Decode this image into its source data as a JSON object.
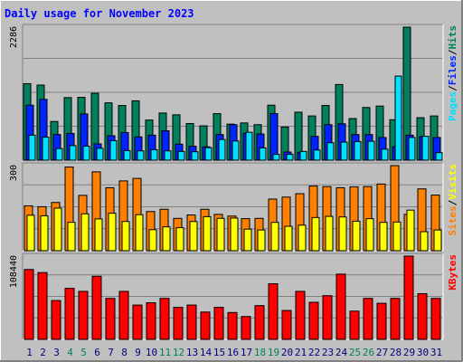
{
  "chart_data": [
    {
      "type": "bar",
      "title": "Daily usage for November 2023",
      "panel": "hits-files-pages",
      "categories": [
        "1",
        "2",
        "3",
        "4",
        "5",
        "6",
        "7",
        "8",
        "9",
        "10",
        "11",
        "12",
        "13",
        "14",
        "15",
        "16",
        "17",
        "18",
        "19",
        "20",
        "21",
        "22",
        "23",
        "24",
        "25",
        "26",
        "27",
        "28",
        "29",
        "30",
        "31"
      ],
      "ymax_label": "2286",
      "ylim": [
        0,
        2286
      ],
      "side_labels": [
        "Pages",
        "/",
        "Files",
        "/",
        "Hits"
      ],
      "colors": {
        "hits": "#00805c",
        "files": "#0024ff",
        "pages": "#00e0ff"
      },
      "series": [
        {
          "name": "Hits",
          "values": [
            1315,
            1290,
            665,
            1075,
            1080,
            1150,
            985,
            940,
            1020,
            690,
            810,
            780,
            630,
            590,
            800,
            620,
            640,
            610,
            945,
            570,
            825,
            760,
            940,
            1300,
            715,
            905,
            930,
            695,
            2286,
            730,
            760
          ]
        },
        {
          "name": "Files",
          "values": [
            945,
            1045,
            440,
            460,
            795,
            280,
            420,
            475,
            400,
            430,
            505,
            275,
            240,
            230,
            440,
            610,
            460,
            450,
            800,
            140,
            135,
            410,
            610,
            625,
            440,
            440,
            390,
            230,
            430,
            405,
            390
          ]
        },
        {
          "name": "Pages",
          "values": [
            430,
            395,
            200,
            250,
            240,
            205,
            335,
            165,
            160,
            180,
            160,
            150,
            145,
            215,
            355,
            330,
            480,
            210,
            100,
            100,
            150,
            175,
            300,
            310,
            320,
            325,
            190,
            1445,
            390,
            410,
            130
          ]
        }
      ]
    },
    {
      "type": "bar",
      "panel": "visits-sites",
      "categories": [
        "1",
        "2",
        "3",
        "4",
        "5",
        "6",
        "7",
        "8",
        "9",
        "10",
        "11",
        "12",
        "13",
        "14",
        "15",
        "16",
        "17",
        "18",
        "19",
        "20",
        "21",
        "22",
        "23",
        "24",
        "25",
        "26",
        "27",
        "28",
        "29",
        "30",
        "31"
      ],
      "ymax_label": "300",
      "ylim": [
        0,
        300
      ],
      "side_labels": [
        "Sites",
        "/",
        "Visits"
      ],
      "colors": {
        "sites": "#ff8000",
        "visits": "#ffff00"
      },
      "series": [
        {
          "name": "Sites",
          "values": [
            158,
            155,
            170,
            295,
            195,
            278,
            222,
            246,
            255,
            138,
            146,
            114,
            126,
            146,
            128,
            122,
            113,
            114,
            182,
            189,
            201,
            228,
            226,
            222,
            225,
            226,
            235,
            300,
            128,
            218,
            196
          ]
        },
        {
          "name": "Visits",
          "values": [
            125,
            123,
            150,
            100,
            130,
            112,
            132,
            103,
            127,
            74,
            84,
            81,
            103,
            120,
            114,
            115,
            76,
            73,
            100,
            86,
            90,
            117,
            121,
            119,
            104,
            113,
            100,
            101,
            143,
            67,
            73
          ]
        }
      ]
    },
    {
      "type": "bar",
      "panel": "kbytes",
      "categories": [
        "1",
        "2",
        "3",
        "4",
        "5",
        "6",
        "7",
        "8",
        "9",
        "10",
        "11",
        "12",
        "13",
        "14",
        "15",
        "16",
        "17",
        "18",
        "19",
        "20",
        "21",
        "22",
        "23",
        "24",
        "25",
        "26",
        "27",
        "28",
        "29",
        "30",
        "31"
      ],
      "ymax_label": "108440",
      "ylim": [
        0,
        108440
      ],
      "side_labels": [
        "KBytes"
      ],
      "colors": {
        "kbytes": "#ff0000"
      },
      "series": [
        {
          "name": "KBytes",
          "values": [
            91000,
            87000,
            50600,
            66500,
            62500,
            82200,
            53400,
            62500,
            44700,
            47700,
            53400,
            41700,
            44700,
            35600,
            41700,
            35000,
            29800,
            44000,
            72400,
            37600,
            62500,
            48300,
            56900,
            85000,
            36800,
            53400,
            47000,
            53400,
            108440,
            59500,
            53400
          ]
        }
      ]
    }
  ],
  "x_weekend_days": [
    4,
    5,
    11,
    12,
    18,
    19,
    25,
    26
  ],
  "x_label_colors": {
    "weekday": "#000080",
    "weekend": "#00805c"
  },
  "frame_colors": {
    "background": "#c0c0c0",
    "title": "#0000ff",
    "panel": "#c0c0c0",
    "outline": "#000000"
  }
}
